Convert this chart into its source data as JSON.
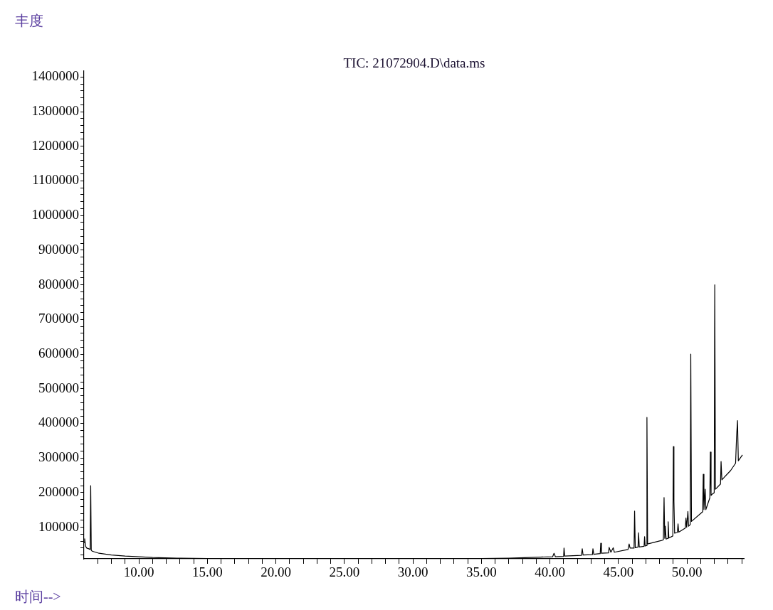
{
  "chart_data": {
    "type": "line",
    "title": "TIC: 21072904.D\\data.ms",
    "xlabel": "时间-->",
    "ylabel": "丰度",
    "marker": "none",
    "line_style": "solid",
    "grid": false,
    "legend": false,
    "xlim": [
      6.0,
      54.15
    ],
    "ylim": [
      9000,
      1417000
    ],
    "xticks": [
      {
        "value": 7,
        "label": null
      },
      {
        "value": 8,
        "label": null
      },
      {
        "value": 9,
        "label": null
      },
      {
        "value": 10,
        "label": "10.00"
      },
      {
        "value": 11,
        "label": null
      },
      {
        "value": 12,
        "label": null
      },
      {
        "value": 13,
        "label": null
      },
      {
        "value": 14,
        "label": null
      },
      {
        "value": 15,
        "label": "15.00"
      },
      {
        "value": 16,
        "label": null
      },
      {
        "value": 17,
        "label": null
      },
      {
        "value": 18,
        "label": null
      },
      {
        "value": 19,
        "label": null
      },
      {
        "value": 20,
        "label": "20.00"
      },
      {
        "value": 21,
        "label": null
      },
      {
        "value": 22,
        "label": null
      },
      {
        "value": 23,
        "label": null
      },
      {
        "value": 24,
        "label": null
      },
      {
        "value": 25,
        "label": "25.00"
      },
      {
        "value": 26,
        "label": null
      },
      {
        "value": 27,
        "label": null
      },
      {
        "value": 28,
        "label": null
      },
      {
        "value": 29,
        "label": null
      },
      {
        "value": 30,
        "label": "30.00"
      },
      {
        "value": 31,
        "label": null
      },
      {
        "value": 32,
        "label": null
      },
      {
        "value": 33,
        "label": null
      },
      {
        "value": 34,
        "label": null
      },
      {
        "value": 35,
        "label": "35.00"
      },
      {
        "value": 36,
        "label": null
      },
      {
        "value": 37,
        "label": null
      },
      {
        "value": 38,
        "label": null
      },
      {
        "value": 39,
        "label": null
      },
      {
        "value": 40,
        "label": "40.00"
      },
      {
        "value": 41,
        "label": null
      },
      {
        "value": 42,
        "label": null
      },
      {
        "value": 43,
        "label": null
      },
      {
        "value": 44,
        "label": null
      },
      {
        "value": 45,
        "label": "45.00"
      },
      {
        "value": 46,
        "label": null
      },
      {
        "value": 47,
        "label": null
      },
      {
        "value": 48,
        "label": null
      },
      {
        "value": 49,
        "label": null
      },
      {
        "value": 50,
        "label": "50.00"
      },
      {
        "value": 51,
        "label": null
      },
      {
        "value": 52,
        "label": null
      },
      {
        "value": 53,
        "label": null
      },
      {
        "value": 54,
        "label": null
      }
    ],
    "yticks": [
      {
        "value": 20000,
        "label": null
      },
      {
        "value": 40000,
        "label": null
      },
      {
        "value": 60000,
        "label": null
      },
      {
        "value": 80000,
        "label": null
      },
      100000,
      {
        "value": 120000,
        "label": null
      },
      {
        "value": 140000,
        "label": null
      },
      {
        "value": 160000,
        "label": null
      },
      {
        "value": 180000,
        "label": null
      },
      200000,
      {
        "value": 220000,
        "label": null
      },
      {
        "value": 240000,
        "label": null
      },
      {
        "value": 260000,
        "label": null
      },
      {
        "value": 280000,
        "label": null
      },
      300000,
      {
        "value": 320000,
        "label": null
      },
      {
        "value": 340000,
        "label": null
      },
      {
        "value": 360000,
        "label": null
      },
      {
        "value": 380000,
        "label": null
      },
      400000,
      {
        "value": 420000,
        "label": null
      },
      {
        "value": 440000,
        "label": null
      },
      {
        "value": 460000,
        "label": null
      },
      {
        "value": 480000,
        "label": null
      },
      500000,
      {
        "value": 520000,
        "label": null
      },
      {
        "value": 540000,
        "label": null
      },
      {
        "value": 560000,
        "label": null
      },
      {
        "value": 580000,
        "label": null
      },
      600000,
      {
        "value": 620000,
        "label": null
      },
      {
        "value": 640000,
        "label": null
      },
      {
        "value": 660000,
        "label": null
      },
      {
        "value": 680000,
        "label": null
      },
      700000,
      {
        "value": 720000,
        "label": null
      },
      {
        "value": 740000,
        "label": null
      },
      {
        "value": 760000,
        "label": null
      },
      {
        "value": 780000,
        "label": null
      },
      800000,
      {
        "value": 820000,
        "label": null
      },
      {
        "value": 840000,
        "label": null
      },
      {
        "value": 860000,
        "label": null
      },
      {
        "value": 880000,
        "label": null
      },
      900000,
      {
        "value": 920000,
        "label": null
      },
      {
        "value": 940000,
        "label": null
      },
      {
        "value": 960000,
        "label": null
      },
      {
        "value": 980000,
        "label": null
      },
      1000000,
      {
        "value": 1020000,
        "label": null
      },
      {
        "value": 1040000,
        "label": null
      },
      {
        "value": 1060000,
        "label": null
      },
      {
        "value": 1080000,
        "label": null
      },
      1100000,
      {
        "value": 1120000,
        "label": null
      },
      {
        "value": 1140000,
        "label": null
      },
      {
        "value": 1160000,
        "label": null
      },
      {
        "value": 1180000,
        "label": null
      },
      1200000,
      {
        "value": 1220000,
        "label": null
      },
      {
        "value": 1240000,
        "label": null
      },
      {
        "value": 1260000,
        "label": null
      },
      {
        "value": 1280000,
        "label": null
      },
      1300000,
      {
        "value": 1320000,
        "label": null
      },
      {
        "value": 1340000,
        "label": null
      },
      {
        "value": 1360000,
        "label": null
      },
      {
        "value": 1380000,
        "label": null
      },
      1400000
    ],
    "series": [
      {
        "color": "#000000",
        "x": [
          6.0,
          6.05,
          6.12,
          6.2,
          6.35,
          6.45,
          6.49,
          6.53,
          6.6,
          7.1,
          8,
          9,
          10,
          11,
          12.8,
          15,
          20,
          25,
          30,
          32,
          35,
          37,
          39.3,
          40.2,
          40.3,
          40.4,
          41.0,
          41.03,
          41.08,
          42.3,
          42.36,
          42.42,
          43.1,
          43.14,
          43.2,
          43.67,
          43.71,
          43.76,
          44.28,
          44.32,
          44.45,
          44.62,
          44.7,
          45.7,
          45.78,
          45.85,
          46.14,
          46.18,
          46.23,
          46.43,
          46.47,
          46.52,
          46.87,
          46.91,
          46.95,
          47.04,
          47.08,
          47.13,
          48.16,
          48.28,
          48.33,
          48.38,
          48.42,
          48.48,
          48.6,
          48.63,
          48.68,
          48.97,
          49.01,
          49.05,
          49.1,
          49.3,
          49.35,
          49.4,
          49.88,
          49.93,
          49.98,
          50.07,
          50.12,
          50.24,
          50.28,
          50.33,
          51.15,
          51.19,
          51.24,
          51.33,
          51.38,
          51.67,
          51.71,
          51.76,
          51.85,
          51.99,
          52.03,
          52.08,
          52.45,
          52.49,
          52.55,
          53.19,
          53.55,
          53.62,
          53.69,
          53.75,
          54.05
        ],
        "values": [
          56000,
          67000,
          45000,
          40000,
          38000,
          36000,
          220000,
          34000,
          31000,
          25000,
          20000,
          17000,
          15000,
          13000,
          11000,
          10000,
          10000,
          10000,
          10000,
          10000,
          10000,
          11000,
          14000,
          15000,
          25000,
          15000,
          16000,
          40000,
          17000,
          19000,
          38000,
          20000,
          21000,
          38000,
          22000,
          24000,
          54000,
          25000,
          26000,
          42000,
          28000,
          41000,
          28000,
          36000,
          52000,
          40000,
          40000,
          147000,
          41000,
          43000,
          84000,
          43000,
          45000,
          73000,
          46000,
          47000,
          417000,
          52000,
          62000,
          64000,
          186000,
          68000,
          103000,
          66000,
          68000,
          116000,
          69000,
          75000,
          333000,
          175000,
          83000,
          85000,
          110000,
          86000,
          98000,
          127000,
          100000,
          146000,
          103000,
          108000,
          600000,
          117000,
          145000,
          253000,
          151000,
          210000,
          151000,
          185000,
          317000,
          192000,
          196000,
          200000,
          800000,
          210000,
          225000,
          290000,
          237000,
          264000,
          285000,
          360000,
          408000,
          292000,
          309000
        ]
      }
    ]
  }
}
